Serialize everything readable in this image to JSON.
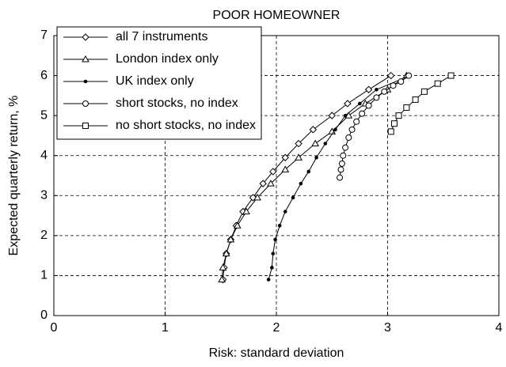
{
  "chart_data": {
    "type": "line",
    "title": "POOR HOMEOWNER",
    "xlabel": "Risk: standard deviation",
    "ylabel": "Expected quarterly return, %",
    "xlim": [
      0,
      4
    ],
    "ylim": [
      0,
      7
    ],
    "xticks": [
      0,
      1,
      2,
      3,
      4
    ],
    "yticks": [
      0,
      1,
      2,
      3,
      4,
      5,
      6,
      7
    ],
    "grid": true,
    "legend": "upper left",
    "color": "#000000",
    "series": [
      {
        "name": "all 7 instruments",
        "marker": "diamond",
        "x": [
          1.52,
          1.53,
          1.55,
          1.59,
          1.64,
          1.7,
          1.79,
          1.88,
          1.97,
          2.08,
          2.2,
          2.33,
          2.5,
          2.64,
          2.83,
          3.03
        ],
        "values": [
          0.9,
          1.2,
          1.55,
          1.9,
          2.25,
          2.6,
          2.95,
          3.3,
          3.6,
          3.95,
          4.3,
          4.65,
          5.0,
          5.3,
          5.65,
          6.0
        ]
      },
      {
        "name": "London index only",
        "marker": "triangle",
        "x": [
          1.51,
          1.52,
          1.55,
          1.59,
          1.65,
          1.73,
          1.83,
          1.95,
          2.08,
          2.2,
          2.35,
          2.5,
          2.65,
          2.8,
          3.0,
          3.17
        ],
        "values": [
          0.9,
          1.2,
          1.55,
          1.9,
          2.25,
          2.6,
          2.95,
          3.3,
          3.65,
          3.95,
          4.3,
          4.6,
          5.0,
          5.3,
          5.65,
          6.0
        ]
      },
      {
        "name": "UK index only",
        "marker": "dot",
        "x": [
          1.93,
          1.96,
          1.97,
          1.99,
          2.03,
          2.08,
          2.15,
          2.22,
          2.29,
          2.36,
          2.44,
          2.53,
          2.62,
          2.75,
          2.9,
          3.2
        ],
        "values": [
          0.9,
          1.2,
          1.55,
          1.9,
          2.25,
          2.6,
          2.95,
          3.3,
          3.6,
          3.95,
          4.3,
          4.65,
          5.0,
          5.3,
          5.65,
          6.0
        ]
      },
      {
        "name": "short stocks, no index",
        "marker": "circle",
        "x": [
          2.57,
          2.58,
          2.59,
          2.6,
          2.62,
          2.65,
          2.68,
          2.72,
          2.77,
          2.83,
          2.9,
          2.97,
          3.05,
          3.12,
          3.19
        ],
        "values": [
          3.45,
          3.65,
          3.8,
          4.0,
          4.2,
          4.45,
          4.65,
          4.85,
          5.05,
          5.25,
          5.45,
          5.6,
          5.75,
          5.85,
          6.0
        ]
      },
      {
        "name": "no short stocks, no index",
        "marker": "square",
        "x": [
          3.03,
          3.06,
          3.1,
          3.17,
          3.25,
          3.33,
          3.45,
          3.57
        ],
        "values": [
          4.6,
          4.8,
          5.0,
          5.2,
          5.4,
          5.6,
          5.8,
          6.0
        ]
      }
    ]
  }
}
